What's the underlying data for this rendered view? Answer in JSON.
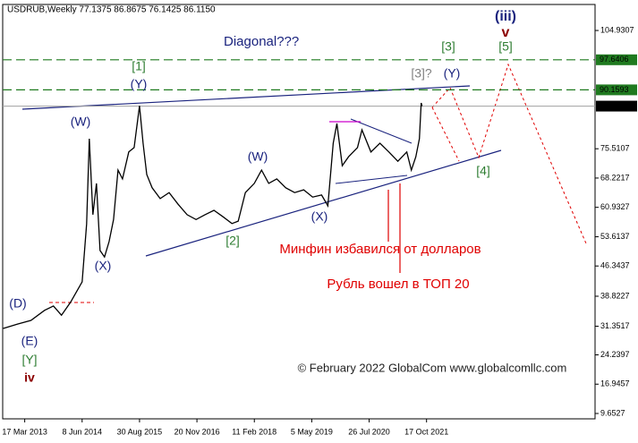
{
  "chart_data": {
    "type": "line",
    "title": "USDRUB,Weekly  77.1375 86.8675 76.1425 86.1150",
    "x": [
      "2012-09-30",
      "2013-01-20",
      "2013-05-05",
      "2013-08-18",
      "2013-10-27",
      "2013-12-29",
      "2014-03-09",
      "2014-06-08",
      "2014-07-13",
      "2014-08-03",
      "2014-08-31",
      "2014-09-28",
      "2014-10-26",
      "2014-11-30",
      "2015-01-04",
      "2015-02-08",
      "2015-03-15",
      "2015-04-19",
      "2015-06-07",
      "2015-07-19",
      "2015-08-30",
      "2015-09-27",
      "2015-10-25",
      "2015-12-06",
      "2016-02-07",
      "2016-04-17",
      "2016-06-26",
      "2016-09-04",
      "2016-11-13",
      "2017-01-22",
      "2017-04-02",
      "2017-06-11",
      "2017-08-20",
      "2017-10-08",
      "2017-12-03",
      "2018-02-11",
      "2018-04-08",
      "2018-06-03",
      "2018-08-05",
      "2018-10-14",
      "2018-12-23",
      "2019-03-03",
      "2019-05-12",
      "2019-07-21",
      "2019-09-08",
      "2019-10-20",
      "2019-11-17",
      "2019-12-29",
      "2020-02-16",
      "2020-04-26",
      "2020-05-31",
      "2020-08-09",
      "2020-10-18",
      "2020-12-27",
      "2021-03-07",
      "2021-05-16",
      "2021-06-20",
      "2021-07-25",
      "2021-08-22",
      "2021-09-05",
      "2021-09-12"
    ],
    "series": [
      {
        "name": "USDRUB",
        "color": "#000000",
        "values": [
          30.8,
          31.9,
          32.8,
          35.3,
          36.4,
          34.1,
          37.3,
          42.4,
          56.8,
          78.0,
          59.1,
          66.9,
          50.2,
          48.6,
          52.4,
          57.9,
          70.2,
          68.0,
          74.7,
          75.8,
          86.2,
          76.9,
          69.1,
          65.8,
          63.1,
          64.6,
          61.7,
          59.1,
          57.9,
          59.1,
          60.2,
          58.6,
          56.9,
          57.5,
          64.6,
          66.9,
          70.2,
          66.9,
          68.0,
          65.8,
          64.6,
          65.3,
          63.5,
          64.0,
          61.3,
          76.9,
          81.8,
          71.3,
          73.5,
          75.8,
          80.2,
          74.7,
          76.9,
          74.7,
          72.4,
          74.7,
          70.2,
          73.5,
          78.0,
          86.9,
          86.115
        ]
      }
    ],
    "xlim": [
      "2012-09-26",
      "2025-05-24"
    ],
    "xticks": [
      {
        "value": "2013-03-17",
        "label": "17 Mar 2013"
      },
      {
        "value": "2014-06-08",
        "label": "8 Jun 2014"
      },
      {
        "value": "2015-08-30",
        "label": "30 Aug 2015"
      },
      {
        "value": "2016-11-20",
        "label": "20 Nov 2016"
      },
      {
        "value": "2018-02-11",
        "label": "11 Feb 2018"
      },
      {
        "value": "2019-05-05",
        "label": "5 May 2019"
      },
      {
        "value": "2020-07-26",
        "label": "26 Jul 2020"
      },
      {
        "value": "2021-10-17",
        "label": "17 Oct 2021"
      }
    ],
    "ylim": [
      8.32,
      111.4
    ],
    "yticks": [
      104.9307,
      75.5107,
      68.2217,
      60.9327,
      53.6137,
      46.3437,
      38.8227,
      31.3517,
      24.2397,
      16.9457,
      9.6527
    ],
    "levels": [
      {
        "value": 97.6406,
        "color": "#1f7a1f"
      },
      {
        "value": 90.1593,
        "color": "#1f7a1f"
      }
    ],
    "last_price": {
      "value": 86.115,
      "label": "86.1150"
    },
    "annotations": [
      {
        "text": "Diagonal???",
        "color": "#1a237e"
      },
      {
        "text": "[1]",
        "color": "#2e7d32"
      },
      {
        "text": "(Y)",
        "color": "#1a237e"
      },
      {
        "text": "(W)",
        "color": "#1a237e"
      },
      {
        "text": "(X)",
        "color": "#1a237e"
      },
      {
        "text": "(W)",
        "color": "#1a237e"
      },
      {
        "text": "[2]",
        "color": "#2e7d32"
      },
      {
        "text": "(X)",
        "color": "#1a237e"
      },
      {
        "text": "[3]?",
        "color": "#808080"
      },
      {
        "text": "(Y)",
        "color": "#1a237e"
      },
      {
        "text": "[3]",
        "color": "#2e7d32"
      },
      {
        "text": "[5]",
        "color": "#2e7d32"
      },
      {
        "text": "(iii)",
        "color": "#1a237e"
      },
      {
        "text": "v",
        "color": "#8b0000"
      },
      {
        "text": "[4]",
        "color": "#2e7d32"
      },
      {
        "text": "(D)",
        "color": "#1a237e"
      },
      {
        "text": "(E)",
        "color": "#1a237e"
      },
      {
        "text": "[Y]",
        "color": "#2e7d32"
      },
      {
        "text": "iv",
        "color": "#8b0000"
      },
      {
        "text": "Минфин избавился от долларов",
        "color": "#e00000"
      },
      {
        "text": "Рубль вошел в ТОП 20",
        "color": "#e00000"
      },
      {
        "text": "© February 2022 GlobalCom www.globalcomllc.com",
        "color": "#222222"
      }
    ]
  }
}
